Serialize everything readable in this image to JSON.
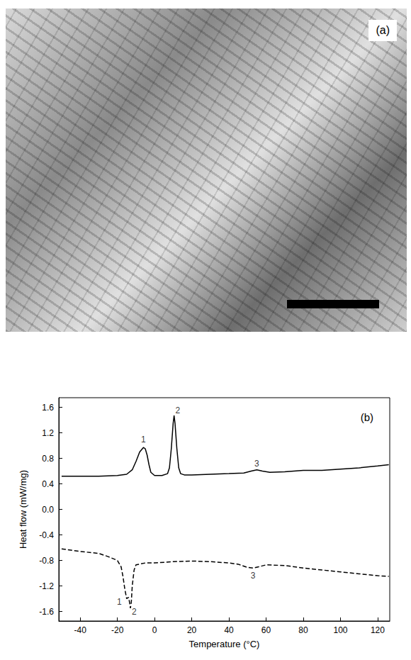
{
  "image_panel": {
    "label": "(a)"
  },
  "chart_data": {
    "type": "line",
    "panel_label": "(b)",
    "x_label": "Temperature (°C)",
    "y_label": "Heat flow (mW/mg)",
    "xlim": [
      -51.5,
      126.5
    ],
    "xticks": [
      -40,
      -20,
      0,
      20,
      40,
      60,
      80,
      100,
      120
    ],
    "ylim": [
      -1.75,
      1.75
    ],
    "yticks": [
      -1.6,
      -1.2,
      -0.8,
      -0.4,
      {
        "value": 0,
        "label": "0.0"
      },
      0.4,
      0.8,
      1.2,
      1.6
    ],
    "grid": false,
    "series": [
      {
        "color": "#000000",
        "line_style": "solid",
        "x": [
          -50,
          -30,
          -20,
          -15,
          -12,
          -10,
          -8,
          -6,
          -5,
          -4,
          -3,
          -2,
          0,
          4,
          7,
          8,
          9,
          10,
          10.5,
          11,
          12,
          13,
          14,
          16,
          20,
          30,
          40,
          48,
          52,
          55,
          58,
          62,
          70,
          80,
          90,
          100,
          110,
          120,
          126
        ],
        "values": [
          0.52,
          0.52,
          0.53,
          0.55,
          0.62,
          0.75,
          0.9,
          0.97,
          0.95,
          0.85,
          0.7,
          0.58,
          0.53,
          0.53,
          0.56,
          0.65,
          0.95,
          1.35,
          1.47,
          1.35,
          0.95,
          0.65,
          0.56,
          0.54,
          0.54,
          0.55,
          0.56,
          0.57,
          0.6,
          0.62,
          0.6,
          0.58,
          0.59,
          0.61,
          0.61,
          0.63,
          0.65,
          0.68,
          0.7
        ]
      },
      {
        "color": "#000000",
        "line_style": "dashed",
        "x": [
          -50,
          -40,
          -30,
          -25,
          -20,
          -18,
          -17,
          -16,
          -15,
          -14,
          -13.5,
          -13,
          -12.5,
          -12,
          -11,
          -10,
          -5,
          0,
          10,
          20,
          30,
          40,
          45,
          50,
          53,
          56,
          60,
          70,
          80,
          90,
          100,
          110,
          120,
          126
        ],
        "values": [
          -0.62,
          -0.66,
          -0.69,
          -0.74,
          -0.8,
          -0.9,
          -1.05,
          -1.25,
          -1.4,
          -1.38,
          -1.45,
          -1.55,
          -1.45,
          -1.2,
          -0.95,
          -0.87,
          -0.84,
          -0.84,
          -0.82,
          -0.81,
          -0.82,
          -0.84,
          -0.86,
          -0.91,
          -0.92,
          -0.9,
          -0.87,
          -0.88,
          -0.92,
          -0.95,
          -0.98,
          -1.01,
          -1.04,
          -1.05
        ]
      }
    ],
    "annotations": [
      {
        "text": "1",
        "x": -6,
        "y": 1.1
      },
      {
        "text": "2",
        "x": 12.5,
        "y": 1.55
      },
      {
        "text": "3",
        "x": 55,
        "y": 0.72
      },
      {
        "text": "1",
        "x": -19,
        "y": -1.45
      },
      {
        "text": "2",
        "x": -11,
        "y": -1.6
      },
      {
        "text": "3",
        "x": 53,
        "y": -1.04
      }
    ]
  }
}
